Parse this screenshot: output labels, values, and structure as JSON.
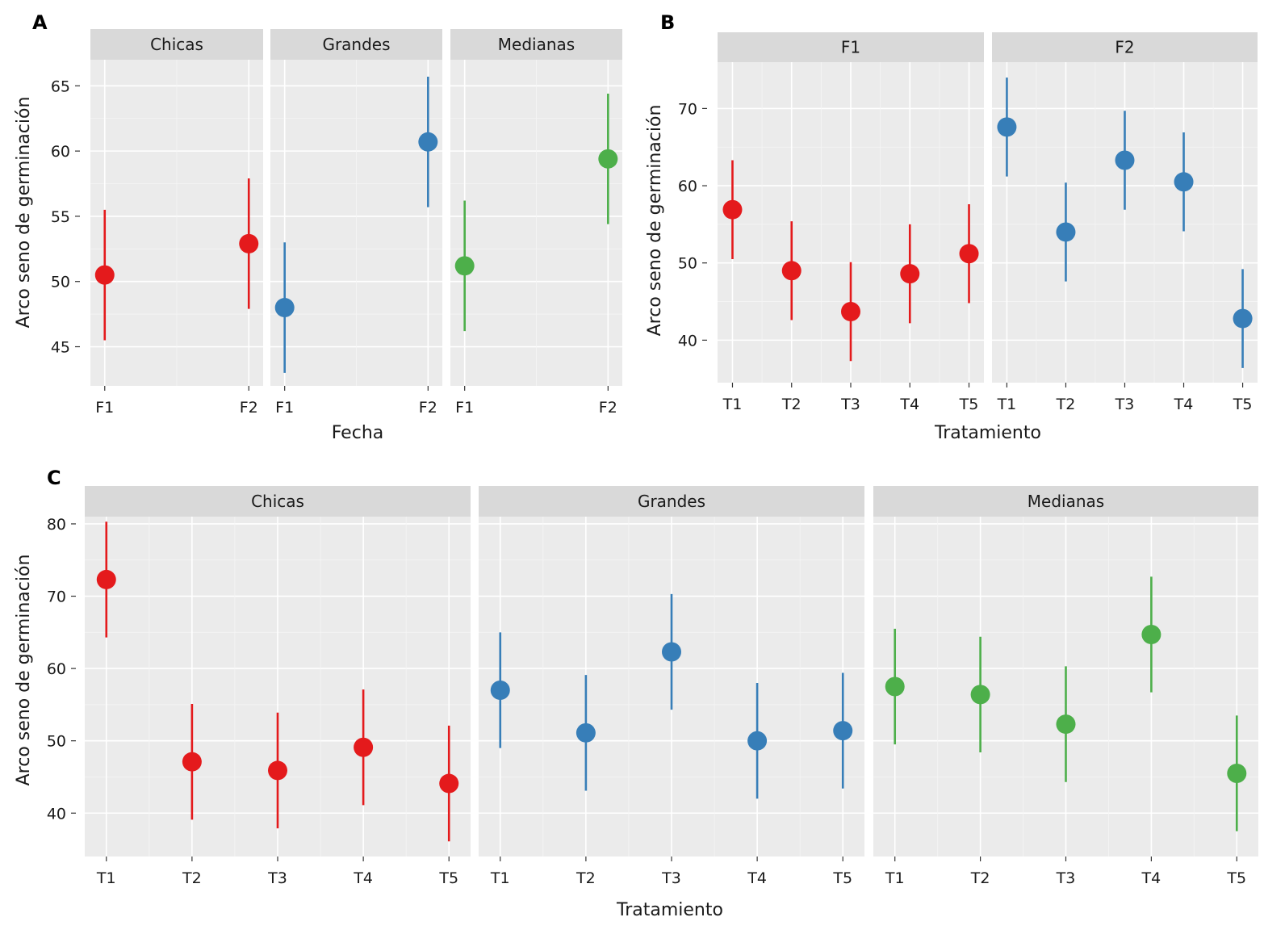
{
  "chart_data": [
    {
      "panel": "A",
      "type": "scatter",
      "subtype": "point-range",
      "xlabel": "Fecha",
      "ylabel": "Arco seno de germinación",
      "ylim": [
        42,
        67
      ],
      "yticks": [
        45,
        50,
        55,
        60,
        65
      ],
      "categories": [
        "F1",
        "F2"
      ],
      "grid": true,
      "facets": [
        {
          "name": "Chicas",
          "color": "#e41a1c",
          "values": [
            50.5,
            52.9
          ],
          "lower": [
            45.5,
            47.9
          ],
          "upper": [
            55.5,
            57.9
          ]
        },
        {
          "name": "Grandes",
          "color": "#377eb8",
          "values": [
            48.0,
            60.7
          ],
          "lower": [
            43.0,
            55.7
          ],
          "upper": [
            53.0,
            65.7
          ]
        },
        {
          "name": "Medianas",
          "color": "#4daf4a",
          "values": [
            51.2,
            59.4
          ],
          "lower": [
            46.2,
            54.4
          ],
          "upper": [
            56.2,
            64.4
          ]
        }
      ]
    },
    {
      "panel": "B",
      "type": "scatter",
      "subtype": "point-range",
      "xlabel": "Tratamiento",
      "ylabel": "Arco seno de germinación",
      "ylim": [
        34.5,
        76
      ],
      "yticks": [
        40,
        50,
        60,
        70
      ],
      "categories": [
        "T1",
        "T2",
        "T3",
        "T4",
        "T5"
      ],
      "grid": true,
      "facets": [
        {
          "name": "F1",
          "color": "#e41a1c",
          "values": [
            56.9,
            49.0,
            43.7,
            48.6,
            51.2
          ],
          "lower": [
            50.5,
            42.6,
            37.3,
            42.2,
            44.8
          ],
          "upper": [
            63.3,
            55.4,
            50.1,
            55.0,
            57.6
          ]
        },
        {
          "name": "F2",
          "color": "#377eb8",
          "values": [
            67.6,
            54.0,
            63.3,
            60.5,
            42.8
          ],
          "lower": [
            61.2,
            47.6,
            56.9,
            54.1,
            36.4
          ],
          "upper": [
            74.0,
            60.4,
            69.7,
            66.9,
            49.2
          ]
        }
      ]
    },
    {
      "panel": "C",
      "type": "scatter",
      "subtype": "point-range",
      "xlabel": "Tratamiento",
      "ylabel": "Arco seno de germinación",
      "ylim": [
        34,
        81
      ],
      "yticks": [
        40,
        50,
        60,
        70,
        80
      ],
      "categories": [
        "T1",
        "T2",
        "T3",
        "T4",
        "T5"
      ],
      "grid": true,
      "facets": [
        {
          "name": "Chicas",
          "color": "#e41a1c",
          "values": [
            72.3,
            47.1,
            45.9,
            49.1,
            44.1
          ],
          "lower": [
            64.3,
            39.1,
            37.9,
            41.1,
            36.1
          ],
          "upper": [
            80.3,
            55.1,
            53.9,
            57.1,
            52.1
          ]
        },
        {
          "name": "Grandes",
          "color": "#377eb8",
          "values": [
            57.0,
            51.1,
            62.3,
            50.0,
            51.4
          ],
          "lower": [
            49.0,
            43.1,
            54.3,
            42.0,
            43.4
          ],
          "upper": [
            65.0,
            59.1,
            70.3,
            58.0,
            59.4
          ]
        },
        {
          "name": "Medianas",
          "color": "#4daf4a",
          "values": [
            57.5,
            56.4,
            52.3,
            64.7,
            45.5
          ],
          "lower": [
            49.5,
            48.4,
            44.3,
            56.7,
            37.5
          ],
          "upper": [
            65.5,
            64.4,
            60.3,
            72.7,
            53.5
          ]
        }
      ]
    }
  ]
}
